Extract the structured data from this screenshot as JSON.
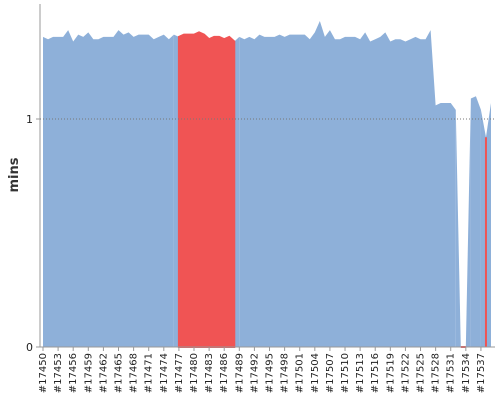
{
  "chart_data": {
    "type": "area",
    "ylabel": "mins",
    "categories": [
      "#17450",
      null,
      null,
      "#17453",
      null,
      null,
      "#17456",
      null,
      null,
      "#17459",
      null,
      null,
      "#17462",
      null,
      null,
      "#17465",
      null,
      null,
      "#17468",
      null,
      null,
      "#17471",
      null,
      null,
      "#17474",
      null,
      null,
      "#17477",
      null,
      null,
      "#17480",
      null,
      null,
      "#17483",
      null,
      null,
      "#17486",
      null,
      null,
      "#17489",
      null,
      null,
      "#17492",
      null,
      null,
      "#17495",
      null,
      null,
      "#17498",
      null,
      null,
      "#17501",
      null,
      null,
      "#17504",
      null,
      null,
      "#17507",
      null,
      null,
      "#17510",
      null,
      null,
      "#17513",
      null,
      null,
      "#17516",
      null,
      null,
      "#17519",
      null,
      null,
      "#17522",
      null,
      null,
      "#17525",
      null,
      null,
      "#17528",
      null,
      null,
      "#17531",
      null,
      null,
      "#17534",
      null,
      null,
      "#17537",
      null,
      null
    ],
    "series": [
      {
        "color": "#8eb0d9",
        "values": [
          1.36,
          1.35,
          1.36,
          1.36,
          1.36,
          1.39,
          1.34,
          1.37,
          1.36,
          1.38,
          1.35,
          1.35,
          1.36,
          1.36,
          1.36,
          1.39,
          1.37,
          1.38,
          1.36,
          1.37,
          1.37,
          1.37,
          1.35,
          1.36,
          1.37,
          1.35,
          1.37,
          null,
          null,
          null,
          null,
          null,
          null,
          null,
          null,
          null,
          null,
          null,
          null,
          1.36,
          1.35,
          1.36,
          1.35,
          1.37,
          1.36,
          1.36,
          1.36,
          1.37,
          1.36,
          1.37,
          1.37,
          1.37,
          1.37,
          1.35,
          1.38,
          1.43,
          1.36,
          1.39,
          1.35,
          1.35,
          1.36,
          1.36,
          1.36,
          1.35,
          1.38,
          1.34,
          1.35,
          1.36,
          1.38,
          1.34,
          1.35,
          1.35,
          1.34,
          1.35,
          1.36,
          1.35,
          1.35,
          1.39,
          1.06,
          1.07,
          1.07,
          1.07,
          1.04,
          null,
          null,
          1.09,
          1.1,
          1.04,
          null,
          1.07
        ]
      },
      {
        "color": "#f05454",
        "values": [
          null,
          null,
          null,
          null,
          null,
          null,
          null,
          null,
          null,
          null,
          null,
          null,
          null,
          null,
          null,
          null,
          null,
          null,
          null,
          null,
          null,
          null,
          null,
          null,
          null,
          null,
          null,
          1.36,
          1.37,
          1.37,
          1.37,
          1.38,
          1.37,
          1.35,
          1.36,
          1.36,
          1.35,
          1.36,
          1.34,
          null,
          null,
          null,
          null,
          null,
          null,
          null,
          null,
          null,
          null,
          null,
          null,
          null,
          null,
          null,
          null,
          null,
          null,
          null,
          null,
          null,
          null,
          null,
          null,
          null,
          null,
          null,
          null,
          null,
          null,
          null,
          null,
          null,
          null,
          null,
          null,
          null,
          null,
          null,
          null,
          null,
          null,
          null,
          null,
          0,
          0,
          null,
          null,
          null,
          0.92,
          null
        ]
      }
    ],
    "ylim": [
      0,
      1.5
    ],
    "yticks": [
      0,
      1
    ],
    "grid": true
  }
}
